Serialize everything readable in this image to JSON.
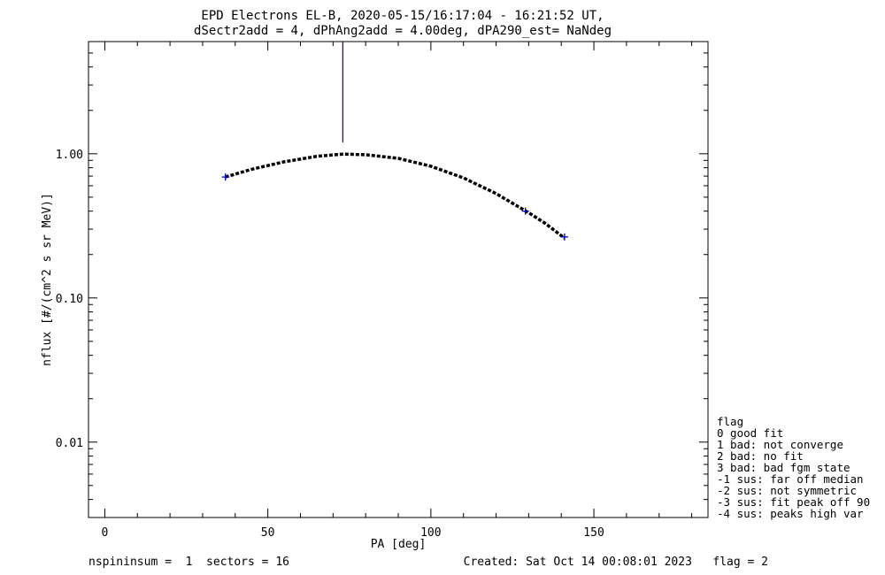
{
  "title": {
    "line1": "EPD Electrons EL-B, 2020-05-15/16:17:04 - 16:21:52 UT,",
    "line2": "dSectr2add = 4, dPhAng2add = 4.00deg, dPA290_est=   NaNdeg"
  },
  "chart_data": {
    "type": "line",
    "xlabel": "PA [deg]",
    "ylabel": "nflux [#/(cm^2 s sr MeV)]",
    "xlim": [
      -5,
      185
    ],
    "ylim": [
      0.003,
      6.0
    ],
    "yscale": "log",
    "x_ticks": [
      0,
      50,
      100,
      150
    ],
    "y_ticks": [
      {
        "value": 0.01,
        "label": "0.01"
      },
      {
        "value": 0.1,
        "label": "0.10"
      },
      {
        "value": 1.0,
        "label": "1.00"
      }
    ],
    "grid": false,
    "fit_curve": {
      "color": "#000000",
      "style": "dashed",
      "x": [
        37,
        45,
        55,
        65,
        73,
        80,
        90,
        100,
        110,
        120,
        130,
        135,
        141
      ],
      "y": [
        0.69,
        0.78,
        0.88,
        0.96,
        0.995,
        0.985,
        0.93,
        0.82,
        0.68,
        0.53,
        0.39,
        0.33,
        0.26
      ]
    },
    "data_points": {
      "color": "#0000cc",
      "marker": "plus",
      "x": [
        37,
        129,
        141
      ],
      "y": [
        0.69,
        0.4,
        0.265
      ]
    },
    "peak_marker": {
      "color": "#0000cc",
      "x": 73,
      "y_from": 1.2,
      "y_to": 6.0
    },
    "legend": {
      "placement": "right-outside",
      "title": "flag",
      "entries": [
        " 0 good fit",
        " 1 bad: not converge",
        " 2 bad: no fit",
        " 3 bad: bad fgm state",
        "-1 sus: far off median",
        "-2 sus: not symmetric",
        "-3 sus: fit peak off 90",
        "-4 sus: peaks high var"
      ]
    }
  },
  "footer": {
    "left": "nspininsum =  1  sectors = 16",
    "right": "Created: Sat Oct 14 00:08:01 2023   flag = 2"
  }
}
